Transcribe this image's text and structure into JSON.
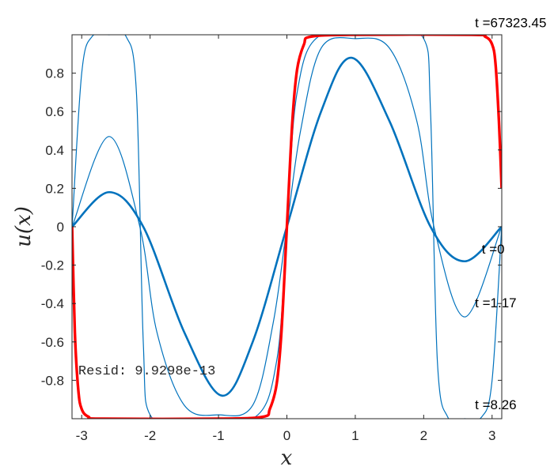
{
  "chart_data": {
    "type": "line",
    "xlabel": "x",
    "ylabel": "u(x)",
    "xlim": [
      -3.14159,
      3.14159
    ],
    "ylim": [
      -1,
      1
    ],
    "xticks": [
      "-3",
      "-2",
      "-1",
      "0",
      "1",
      "2",
      "3"
    ],
    "xtick_values": [
      -3,
      -2,
      -1,
      0,
      1,
      2,
      3
    ],
    "yticks": [
      "0.8",
      "0.6",
      "0.4",
      "0.2",
      "0",
      "-0.2",
      "-0.4",
      "-0.6",
      "-0.8"
    ],
    "ytick_values": [
      0.8,
      0.6,
      0.4,
      0.2,
      0,
      -0.2,
      -0.4,
      -0.6,
      -0.8
    ],
    "grid": false,
    "series": [
      {
        "name": "t =0",
        "color": "#0072BD",
        "width": "thick",
        "x": [
          -3.14,
          -2.6,
          -2.1,
          -1.5,
          -0.95,
          -0.5,
          0,
          0.5,
          0.95,
          1.5,
          2.1,
          2.6,
          3.14
        ],
        "y": [
          0,
          0.18,
          0.0,
          -0.55,
          -0.88,
          -0.6,
          0,
          0.6,
          0.88,
          0.55,
          0.0,
          -0.18,
          0
        ]
      },
      {
        "name": "t =1.17",
        "color": "#0072BD",
        "width": "thin",
        "x": [
          -3.14,
          -2.6,
          -2.15,
          -1.9,
          -1.5,
          -1.0,
          -0.5,
          -0.2,
          0,
          0.2,
          0.5,
          1.0,
          1.5,
          1.9,
          2.15,
          2.6,
          3.14
        ],
        "y": [
          0,
          0.47,
          0.0,
          -0.55,
          -0.93,
          -0.98,
          -0.93,
          -0.5,
          0,
          0.5,
          0.93,
          0.98,
          0.93,
          0.55,
          0.0,
          -0.47,
          0
        ]
      },
      {
        "name": "t =8.26",
        "color": "#0072BD",
        "width": "thin",
        "x": [
          -3.14,
          -3.0,
          -2.85,
          -2.6,
          -2.35,
          -2.2,
          -2.1,
          -2.0,
          -1.5,
          -0.5,
          -0.15,
          0,
          0.15,
          0.5,
          1.5,
          2.0,
          2.1,
          2.2,
          2.35,
          2.6,
          2.85,
          3.0,
          3.14
        ],
        "y": [
          0,
          0.8,
          0.99,
          1.0,
          0.99,
          0.7,
          -0.6,
          -0.98,
          -1.0,
          -1.0,
          -0.7,
          0,
          0.7,
          1.0,
          1.0,
          0.98,
          0.6,
          -0.7,
          -0.99,
          -1.0,
          -0.99,
          -0.8,
          0
        ]
      },
      {
        "name": "t =67323.45",
        "color": "#FF0000",
        "width": "thickest",
        "x": [
          -3.14,
          -3.1,
          -3.05,
          -3.0,
          -2.9,
          -2.7,
          -1.0,
          -0.35,
          -0.25,
          -0.15,
          -0.08,
          0,
          0.08,
          0.15,
          0.25,
          0.35,
          1.0,
          2.7,
          2.9,
          3.0,
          3.05,
          3.1,
          3.14
        ],
        "y": [
          0,
          -0.55,
          -0.85,
          -0.95,
          -0.99,
          -1.0,
          -1.0,
          -0.99,
          -0.95,
          -0.82,
          -0.55,
          0,
          0.55,
          0.82,
          0.95,
          0.99,
          1.0,
          1.0,
          0.99,
          0.95,
          0.85,
          0.55,
          0.2
        ]
      }
    ],
    "annotations": [
      {
        "text": "t =67323.45",
        "x": 2.75,
        "y": 1.04
      },
      {
        "text": "t =0",
        "x": 2.85,
        "y": -0.14
      },
      {
        "text": "t =1.17",
        "x": 2.75,
        "y": -0.42
      },
      {
        "text": "t =8.26",
        "x": 2.75,
        "y": -0.95
      }
    ],
    "resid_label": "Resid: 9.9298e-13",
    "resid_pos": {
      "x": -3.05,
      "y": -0.77
    }
  }
}
